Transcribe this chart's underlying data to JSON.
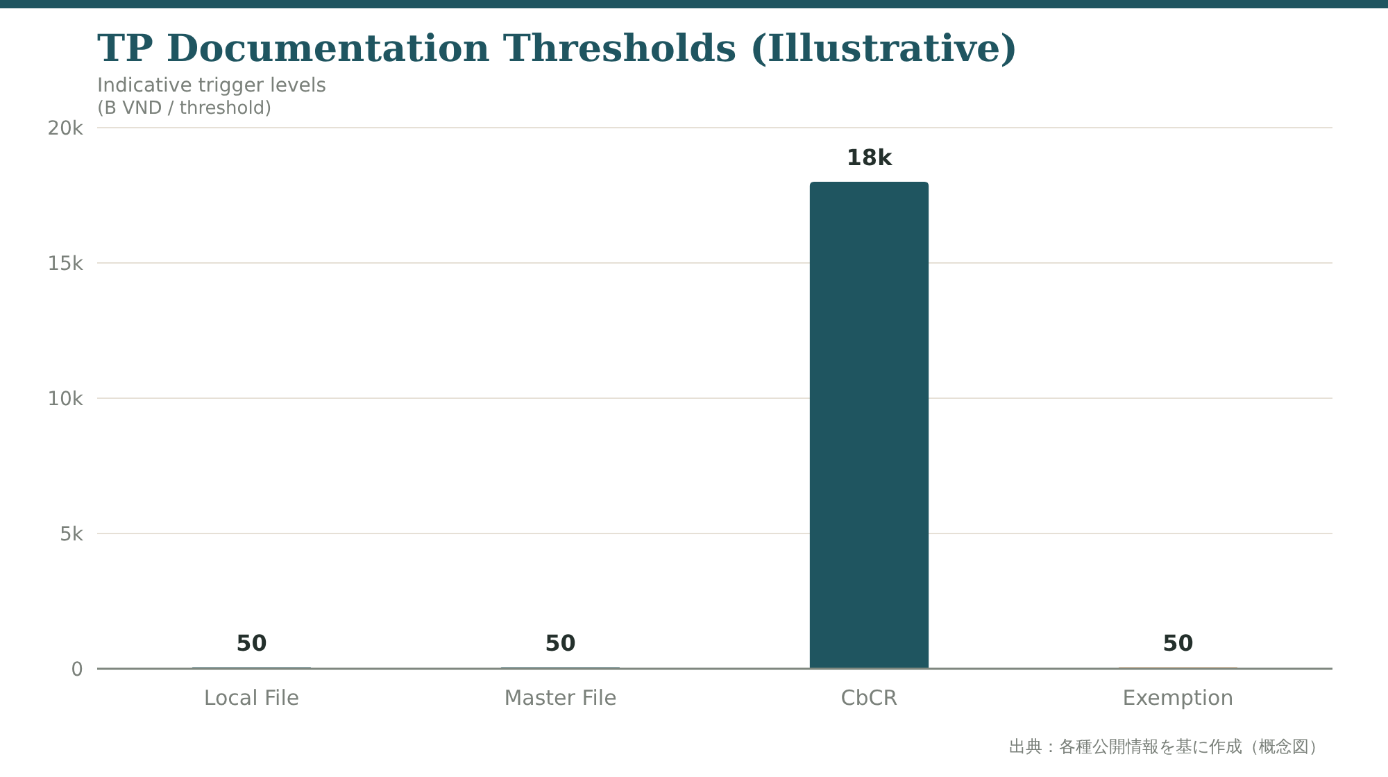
{
  "chart_data": {
    "type": "bar",
    "title": "TP Documentation Thresholds (Illustrative)",
    "subtitle": "Indicative trigger levels",
    "ylabel": "(B VND / threshold)",
    "categories": [
      "Local File",
      "Master File",
      "CbCR",
      "Exemption"
    ],
    "values": [
      50,
      50,
      18000,
      50
    ],
    "colors": [
      "#1f5560",
      "#1f5560",
      "#1f5560",
      "#c9915a"
    ],
    "value_labels": [
      "50",
      "50",
      "18k",
      "50"
    ],
    "ylim": [
      0,
      20000
    ],
    "yticks": [
      {
        "value": 0,
        "label": "0"
      },
      {
        "value": 5000,
        "label": "5k"
      },
      {
        "value": 10000,
        "label": "10k"
      },
      {
        "value": 15000,
        "label": "15k"
      },
      {
        "value": 20000,
        "label": "20k"
      }
    ],
    "grid": "y",
    "annotations": [
      "出典：各種公開情報を基に作成（概念図）"
    ]
  }
}
